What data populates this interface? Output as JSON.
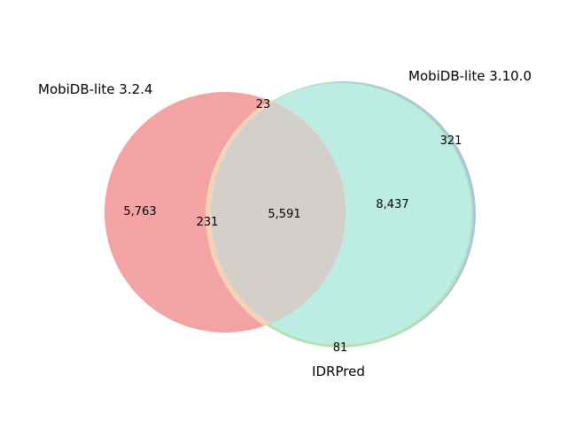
{
  "chart_data": {
    "type": "venn3",
    "sets": [
      {
        "name": "MobiDB-lite 3.2.4",
        "color": "#f08080"
      },
      {
        "name": "MobiDB-lite 3.10.0",
        "color": "#86a9d6"
      },
      {
        "name": "IDRPred",
        "color": "#90d890"
      }
    ],
    "regions": [
      {
        "id": "A_only",
        "sets": [
          "MobiDB-lite 3.2.4"
        ],
        "label": "5,763",
        "value": 5763
      },
      {
        "id": "B_only",
        "sets": [
          "MobiDB-lite 3.10.0"
        ],
        "label": "321",
        "value": 321
      },
      {
        "id": "C_only",
        "sets": [
          "IDRPred"
        ],
        "label": "81",
        "value": 81
      },
      {
        "id": "AB_only",
        "sets": [
          "MobiDB-lite 3.2.4",
          "MobiDB-lite 3.10.0"
        ],
        "label": "23",
        "value": 23
      },
      {
        "id": "AC_only",
        "sets": [
          "MobiDB-lite 3.2.4",
          "IDRPred"
        ],
        "label": "231",
        "value": 231
      },
      {
        "id": "BC_only",
        "sets": [
          "MobiDB-lite 3.10.0",
          "IDRPred"
        ],
        "label": "8,437",
        "value": 8437
      },
      {
        "id": "ABC",
        "sets": [
          "MobiDB-lite 3.2.4",
          "MobiDB-lite 3.10.0",
          "IDRPred"
        ],
        "label": "5,591",
        "value": 5591
      }
    ],
    "colors": {
      "A_only": "#f3a3a3",
      "BC_overlap": "#bdece2",
      "ABC_overlap": "#d3cfca",
      "B_edge": "#a8c4e2",
      "C_edge": "#b3e3b3",
      "AC_edge": "#f3d2b8"
    }
  }
}
